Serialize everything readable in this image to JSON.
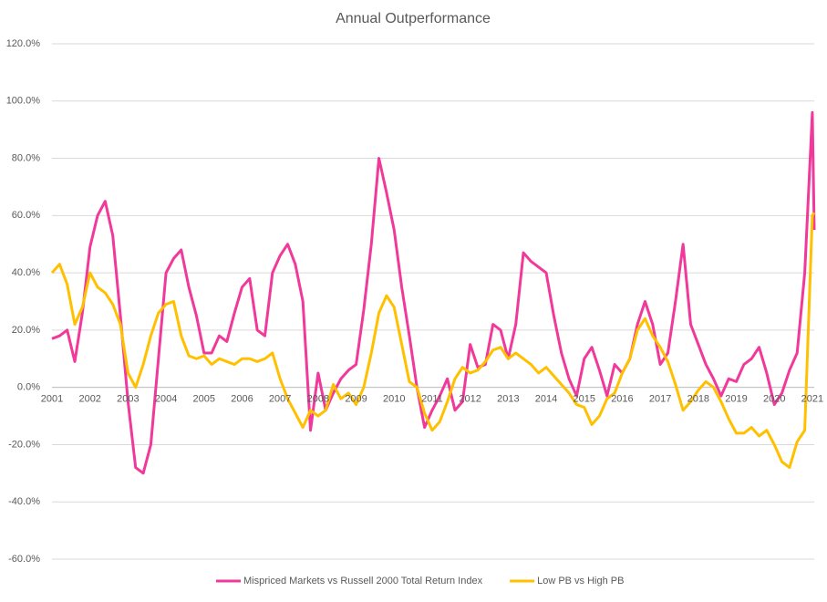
{
  "chart_data": {
    "type": "line",
    "title": "Annual Outperformance",
    "x": [
      2001,
      2001.2,
      2001.4,
      2001.6,
      2001.8,
      2002,
      2002.2,
      2002.4,
      2002.6,
      2002.8,
      2003,
      2003.2,
      2003.4,
      2003.6,
      2003.8,
      2004,
      2004.2,
      2004.4,
      2004.6,
      2004.8,
      2005,
      2005.2,
      2005.4,
      2005.6,
      2005.8,
      2006,
      2006.2,
      2006.4,
      2006.6,
      2006.8,
      2007,
      2007.2,
      2007.4,
      2007.6,
      2007.8,
      2008,
      2008.2,
      2008.4,
      2008.6,
      2008.8,
      2009,
      2009.2,
      2009.4,
      2009.6,
      2009.8,
      2010,
      2010.2,
      2010.4,
      2010.6,
      2010.8,
      2011,
      2011.2,
      2011.4,
      2011.6,
      2011.8,
      2012,
      2012.2,
      2012.4,
      2012.6,
      2012.8,
      2013,
      2013.2,
      2013.4,
      2013.6,
      2013.8,
      2014,
      2014.2,
      2014.4,
      2014.6,
      2014.8,
      2015,
      2015.2,
      2015.4,
      2015.6,
      2015.8,
      2016,
      2016.2,
      2016.4,
      2016.6,
      2016.8,
      2017,
      2017.2,
      2017.4,
      2017.6,
      2017.8,
      2018,
      2018.2,
      2018.4,
      2018.6,
      2018.8,
      2019,
      2019.2,
      2019.4,
      2019.6,
      2019.8,
      2020,
      2020.2,
      2020.4,
      2020.6,
      2020.8,
      2021,
      2021.05
    ],
    "series": [
      {
        "name": "Mispriced Markets vs Russell 2000 Total Return Index",
        "color": "#f0399a",
        "values": [
          17,
          18,
          20,
          9,
          26,
          49,
          60,
          65,
          53,
          25,
          -5,
          -28,
          -30,
          -20,
          10,
          40,
          45,
          48,
          35,
          25,
          12,
          12,
          18,
          16,
          26,
          35,
          38,
          20,
          18,
          40,
          46,
          50,
          43,
          30,
          -15,
          5,
          -8,
          -2,
          3,
          6,
          8,
          27,
          50,
          80,
          68,
          55,
          35,
          18,
          0,
          -14,
          -8,
          -3,
          3,
          -8,
          -5,
          15,
          7,
          8,
          22,
          20,
          10,
          22,
          47,
          44,
          42,
          40,
          25,
          12,
          3,
          -3,
          10,
          14,
          6,
          -3,
          8,
          5,
          10,
          22,
          30,
          22,
          8,
          12,
          30,
          50,
          22,
          15,
          8,
          3,
          -3,
          3,
          2,
          8,
          10,
          14,
          5,
          -6,
          -2,
          6,
          12,
          40,
          96,
          55
        ]
      },
      {
        "name": "Low PB vs High PB",
        "color": "#ffc000",
        "values": [
          40,
          43,
          36,
          22,
          28,
          40,
          35,
          33,
          29,
          22,
          5,
          0,
          8,
          18,
          26,
          29,
          30,
          18,
          11,
          10,
          11,
          8,
          10,
          9,
          8,
          10,
          10,
          9,
          10,
          12,
          3,
          -4,
          -9,
          -14,
          -8,
          -10,
          -8,
          1,
          -4,
          -2,
          -6,
          0,
          12,
          26,
          32,
          28,
          15,
          2,
          0,
          -9,
          -15,
          -12,
          -5,
          3,
          7,
          5,
          6,
          9,
          13,
          14,
          10,
          12,
          10,
          8,
          5,
          7,
          4,
          1,
          -2,
          -6,
          -7,
          -13,
          -10,
          -4,
          -2,
          5,
          10,
          20,
          24,
          18,
          14,
          9,
          1,
          -8,
          -5,
          -1,
          2,
          0,
          -5,
          -11,
          -16,
          -16,
          -14,
          -17,
          -15,
          -20,
          -26,
          -28,
          -19,
          -15,
          60,
          61
        ]
      }
    ],
    "xlim": [
      2001,
      2021.05
    ],
    "xticks": [
      2001,
      2002,
      2003,
      2004,
      2005,
      2006,
      2007,
      2008,
      2009,
      2010,
      2011,
      2012,
      2013,
      2014,
      2015,
      2016,
      2017,
      2018,
      2019,
      2020,
      2021
    ],
    "ylim": [
      -60,
      120
    ],
    "yticks": [
      {
        "value": -60,
        "label": "-60.0%"
      },
      {
        "value": -40,
        "label": "-40.0%"
      },
      {
        "value": -20,
        "label": "-20.0%"
      },
      {
        "value": 0,
        "label": "0.0%"
      },
      {
        "value": 20,
        "label": "20.0%"
      },
      {
        "value": 40,
        "label": "40.0%"
      },
      {
        "value": 60,
        "label": "60.0%"
      },
      {
        "value": 80,
        "label": "80.0%"
      },
      {
        "value": 100,
        "label": "100.0%"
      },
      {
        "value": 120,
        "label": "120.0%"
      }
    ],
    "grid": true,
    "legend": "bottom"
  }
}
